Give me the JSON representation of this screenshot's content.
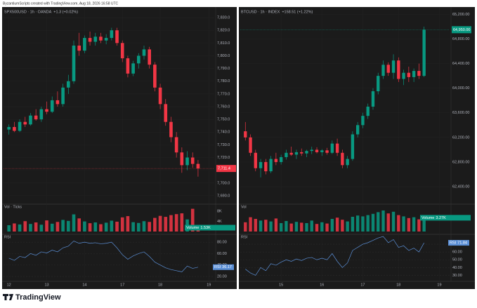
{
  "header": "ByzantiumScripts created with TradingView.com, Aug 18, 2026 16:58 UTC",
  "footer": "TradingView",
  "chart_data": [
    {
      "type": "candlestick",
      "title": "SPX500USD · 1h · OANDA",
      "change": "+1.3 (+0.02%)",
      "up_color": "#089981",
      "down_color": "#f23645",
      "xlim": [
        -1,
        38
      ],
      "xticks": [
        {
          "value": 0,
          "label": "12"
        },
        {
          "value": 7,
          "label": "13"
        },
        {
          "value": 14,
          "label": "14"
        },
        {
          "value": 21,
          "label": "17"
        },
        {
          "value": 28,
          "label": "18"
        },
        {
          "value": 37,
          "label": "19"
        }
      ],
      "ylim": [
        7685,
        7835
      ],
      "yticks": [
        {
          "value": 7690,
          "label": "7,690.0"
        },
        {
          "value": 7700,
          "label": "7,700.0"
        },
        {
          "value": 7710,
          "label": "7,710.0"
        },
        {
          "value": 7720,
          "label": "7,720.0"
        },
        {
          "value": 7730,
          "label": "7,730.0"
        },
        {
          "value": 7740,
          "label": "7,740.0"
        },
        {
          "value": 7750,
          "label": "7,750.0"
        },
        {
          "value": 7760,
          "label": "7,760.0"
        },
        {
          "value": 7770,
          "label": "7,770.0"
        },
        {
          "value": 7780,
          "label": "7,780.0"
        },
        {
          "value": 7790,
          "label": "7,790.0"
        },
        {
          "value": 7800,
          "label": "7,800.0"
        },
        {
          "value": 7810,
          "label": "7,810.0"
        },
        {
          "value": 7820,
          "label": "7,820.0"
        },
        {
          "value": 7830,
          "label": "7,830.0"
        }
      ],
      "open": [
        7742,
        7744,
        7741,
        7748,
        7746,
        7753,
        7750,
        7758,
        7756,
        7765,
        7762,
        7775,
        7780,
        7808,
        7804,
        7814,
        7811,
        7815,
        7812,
        7814,
        7820,
        7810,
        7798,
        7786,
        7794,
        7800,
        7805,
        7793,
        7775,
        7762,
        7748,
        7736,
        7724,
        7714,
        7720,
        7715
      ],
      "high": [
        7746,
        7748,
        7750,
        7752,
        7755,
        7758,
        7760,
        7764,
        7768,
        7772,
        7778,
        7785,
        7812,
        7818,
        7816,
        7819,
        7818,
        7818,
        7817,
        7822,
        7822,
        7812,
        7800,
        7796,
        7802,
        7808,
        7807,
        7795,
        7778,
        7766,
        7752,
        7740,
        7728,
        7725,
        7724,
        7718
      ],
      "low": [
        7738,
        7740,
        7740,
        7744,
        7745,
        7749,
        7748,
        7754,
        7755,
        7760,
        7760,
        7770,
        7778,
        7800,
        7802,
        7808,
        7808,
        7810,
        7809,
        7812,
        7808,
        7795,
        7783,
        7784,
        7790,
        7797,
        7790,
        7772,
        7758,
        7745,
        7732,
        7720,
        7708,
        7710,
        7712,
        7705
      ],
      "close": [
        7744,
        7741,
        7748,
        7746,
        7753,
        7750,
        7758,
        7756,
        7765,
        7762,
        7775,
        7780,
        7808,
        7804,
        7814,
        7811,
        7815,
        7812,
        7814,
        7820,
        7810,
        7798,
        7786,
        7794,
        7800,
        7805,
        7793,
        7775,
        7762,
        7748,
        7736,
        7724,
        7714,
        7720,
        7715,
        7711.4
      ],
      "last_label": "7,711.4",
      "volume": {
        "title": "Vol · Ticks",
        "name": "Volume",
        "ylim": [
          0,
          10000
        ],
        "yticks": [
          {
            "value": 4000,
            "label": "4K"
          },
          {
            "value": 8000,
            "label": "8K"
          }
        ],
        "values": [
          2500,
          3200,
          2800,
          4100,
          3000,
          3600,
          2700,
          4400,
          3100,
          3800,
          4600,
          4200,
          6800,
          5200,
          4000,
          3300,
          3600,
          2900,
          3500,
          4300,
          3900,
          5600,
          6100,
          3700,
          3400,
          4100,
          3800,
          5400,
          6200,
          5800,
          6500,
          6900,
          7200,
          4800,
          9000,
          1530
        ],
        "last_label": "1.53K"
      },
      "rsi": {
        "title": "RSI",
        "color": "#5b8fd6",
        "ylim": [
          15,
          90
        ],
        "yticks": [
          {
            "value": 20,
            "label": "20.00"
          },
          {
            "value": 40,
            "label": "40.00"
          },
          {
            "value": 60,
            "label": "60.00"
          },
          {
            "value": 80,
            "label": "80.00"
          }
        ],
        "values": [
          52,
          48,
          55,
          53,
          60,
          57,
          63,
          61,
          66,
          63,
          70,
          73,
          82,
          78,
          80,
          78,
          79,
          77,
          78,
          80,
          70,
          58,
          50,
          56,
          60,
          63,
          55,
          45,
          40,
          35,
          32,
          30,
          28,
          38,
          34,
          36.17
        ],
        "last_label": "36.17"
      }
    },
    {
      "type": "candlestick",
      "title": "BTCUSD · 1h · INDEX",
      "change": "+158.51 (+1.22%)",
      "up_color": "#089981",
      "down_color": "#f23645",
      "xlim": [
        -1,
        40
      ],
      "xticks": [
        {
          "value": 7,
          "label": "15"
        },
        {
          "value": 15,
          "label": "16"
        },
        {
          "value": 23,
          "label": "17"
        },
        {
          "value": 30,
          "label": "18"
        },
        {
          "value": 38,
          "label": "19"
        }
      ],
      "ylim": [
        62150,
        65250
      ],
      "yticks": [
        {
          "value": 62400,
          "label": "62,400.00"
        },
        {
          "value": 62800,
          "label": "62,800.00"
        },
        {
          "value": 63200,
          "label": "63,200.00"
        },
        {
          "value": 63600,
          "label": "63,600.00"
        },
        {
          "value": 64000,
          "label": "64,000.00"
        },
        {
          "value": 64400,
          "label": "64,400.00"
        },
        {
          "value": 64800,
          "label": "64,800.00"
        },
        {
          "value": 65200,
          "label": "65,200.00"
        }
      ],
      "open": [
        63300,
        63200,
        62950,
        62700,
        62800,
        62650,
        62850,
        62800,
        62880,
        62950,
        62920,
        62960,
        62940,
        62980,
        63000,
        62960,
        62990,
        62950,
        63100,
        62950,
        62750,
        62850,
        63250,
        63400,
        63550,
        63700,
        63950,
        64200,
        64380,
        64250,
        64450,
        64150,
        64250,
        64180,
        64280,
        64200
      ],
      "high": [
        63450,
        63250,
        63000,
        62850,
        62850,
        62900,
        62950,
        62920,
        63000,
        63050,
        63000,
        63020,
        63000,
        63050,
        63040,
        63010,
        63030,
        63150,
        63180,
        63000,
        62900,
        63300,
        63450,
        63600,
        63750,
        64000,
        64250,
        64450,
        64420,
        64550,
        64500,
        64300,
        64350,
        64320,
        64400,
        65000
      ],
      "low": [
        63150,
        62900,
        62650,
        62550,
        62600,
        62620,
        62750,
        62760,
        62840,
        62900,
        62850,
        62900,
        62880,
        62930,
        62940,
        62900,
        62920,
        62930,
        62900,
        62700,
        62700,
        62820,
        63200,
        63350,
        63500,
        63650,
        63900,
        64150,
        64200,
        64150,
        64100,
        64050,
        64100,
        64100,
        64150,
        64180
      ],
      "close": [
        63200,
        62950,
        62700,
        62800,
        62650,
        62850,
        62800,
        62880,
        62950,
        62920,
        62960,
        62940,
        62980,
        63000,
        62960,
        62990,
        62950,
        63100,
        62950,
        62750,
        62850,
        63250,
        63400,
        63550,
        63700,
        63950,
        64200,
        64380,
        64250,
        64450,
        64150,
        64250,
        64180,
        64280,
        64200,
        64950
      ],
      "last_label": "64,950.00",
      "volume": {
        "title": "Vol",
        "name": "Volume",
        "ylim": [
          0,
          6000
        ],
        "values": [
          2200,
          3400,
          3000,
          2600,
          2800,
          2400,
          3100,
          2000,
          2500,
          1900,
          2300,
          2100,
          2000,
          2600,
          1800,
          2200,
          1900,
          3000,
          3300,
          2800,
          2400,
          3500,
          3800,
          3600,
          3900,
          4200,
          4600,
          5000,
          4300,
          4700,
          3900,
          3600,
          3200,
          3400,
          2900,
          3270
        ],
        "last_label": "3.27K"
      },
      "rsi": {
        "title": "RSI",
        "color": "#5b8fd6",
        "ylim": [
          25,
          80
        ],
        "yticks": [
          {
            "value": 30,
            "label": "30.00"
          },
          {
            "value": 40,
            "label": "40.00"
          },
          {
            "value": 50,
            "label": "50.00"
          },
          {
            "value": 60,
            "label": "60.00"
          },
          {
            "value": 70,
            "label": "70.00"
          }
        ],
        "values": [
          38,
          33,
          30,
          40,
          36,
          45,
          43,
          47,
          50,
          48,
          51,
          49,
          52,
          53,
          50,
          52,
          50,
          58,
          48,
          40,
          46,
          62,
          66,
          70,
          72,
          75,
          78,
          80,
          72,
          76,
          66,
          68,
          62,
          65,
          60,
          71.84
        ],
        "last_label": "71.84"
      }
    }
  ]
}
